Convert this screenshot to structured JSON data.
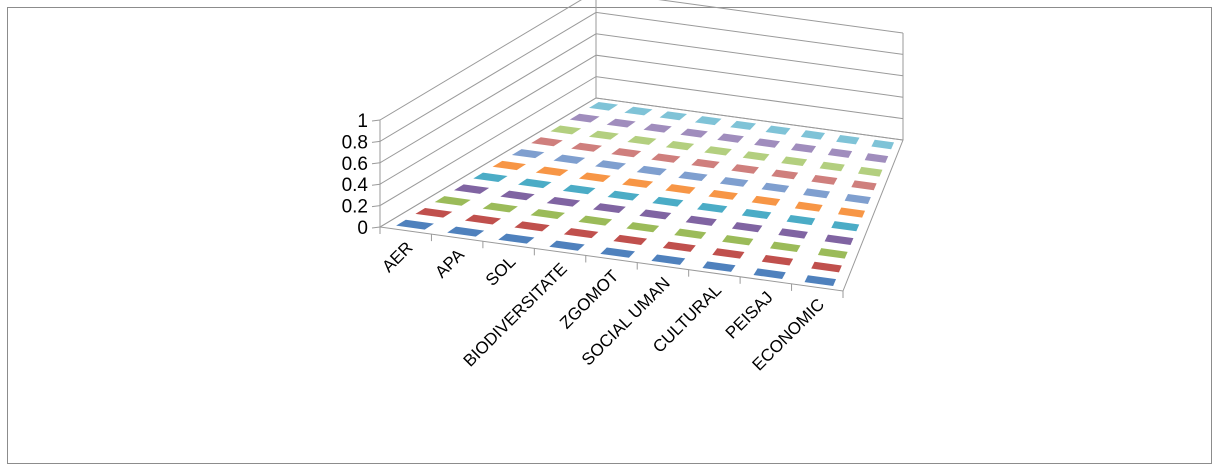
{
  "chart_data": {
    "type": "bar",
    "subtype": "3d-column",
    "title": "",
    "xlabel": "",
    "ylabel": "",
    "categories": [
      "AER",
      "APA",
      "SOL",
      "BIODIVERSITATE",
      "ZGOMOT",
      "SOCIAL UMAN",
      "CULTURAL",
      "PEISAJ",
      "ECONOMIC"
    ],
    "y_ticks": [
      "0",
      "0.2",
      "0.4",
      "0.6",
      "0.8",
      "1"
    ],
    "ylim": [
      0,
      1
    ],
    "grid": true,
    "legend": "none",
    "series": [
      {
        "color": "#4f81bd",
        "values": [
          0,
          0,
          0,
          0,
          0,
          0,
          0,
          0,
          0
        ]
      },
      {
        "color": "#c0504d",
        "values": [
          0,
          0,
          0,
          0,
          0,
          0,
          0,
          0,
          0
        ]
      },
      {
        "color": "#9bbb59",
        "values": [
          0,
          0,
          0,
          0,
          0,
          0,
          0,
          0,
          0
        ]
      },
      {
        "color": "#8064a2",
        "values": [
          0,
          0,
          0,
          0,
          0,
          0,
          0,
          0,
          0
        ]
      },
      {
        "color": "#4bacc6",
        "values": [
          0,
          0,
          0,
          0,
          0,
          0,
          0,
          0,
          0
        ]
      },
      {
        "color": "#f79646",
        "values": [
          0,
          0,
          0,
          0,
          0,
          0,
          0,
          0,
          0
        ]
      },
      {
        "color": "#7f9fcf",
        "values": [
          0,
          0,
          0,
          0,
          0,
          0,
          0,
          0,
          0
        ]
      },
      {
        "color": "#cf7f7d",
        "values": [
          0,
          0,
          0,
          0,
          0,
          0,
          0,
          0,
          0
        ]
      },
      {
        "color": "#b3cf7f",
        "values": [
          0,
          0,
          0,
          0,
          0,
          0,
          0,
          0,
          0
        ]
      },
      {
        "color": "#a08dbd",
        "values": [
          0,
          0,
          0,
          0,
          0,
          0,
          0,
          0,
          0
        ]
      },
      {
        "color": "#7fc3d7",
        "values": [
          0,
          0,
          0,
          0,
          0,
          0,
          0,
          0,
          0
        ]
      }
    ]
  }
}
